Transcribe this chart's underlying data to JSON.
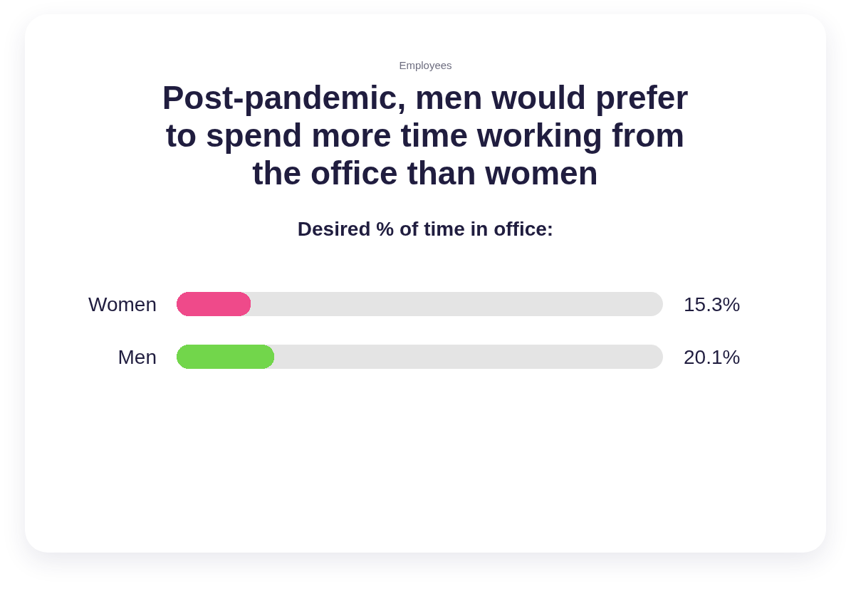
{
  "chart_data": {
    "type": "bar",
    "orientation": "horizontal",
    "title": "Post-pandemic, men would prefer to spend more time working from the office than women",
    "subtitle": "Desired % of time in office:",
    "annotations": [
      "Employees"
    ],
    "categories": [
      "Women",
      "Men"
    ],
    "values": [
      15.3,
      20.1
    ],
    "colors": [
      "#ef4a8a",
      "#72d64b"
    ],
    "value_labels": [
      "15.3%",
      "20.1%"
    ],
    "xlim": [
      0,
      100
    ],
    "tick_labels": "y"
  }
}
